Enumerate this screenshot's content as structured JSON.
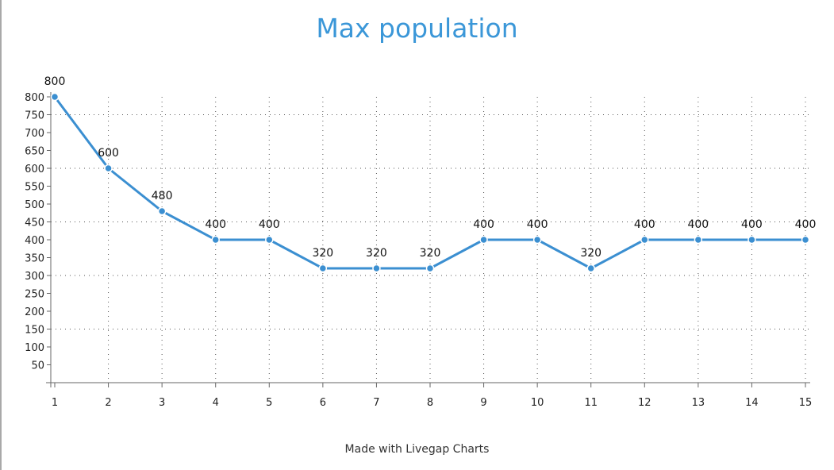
{
  "chart_data": {
    "type": "line",
    "title": "Max population",
    "x": [
      1,
      2,
      3,
      4,
      5,
      6,
      7,
      8,
      9,
      10,
      11,
      12,
      13,
      14,
      15
    ],
    "series": [
      {
        "values": [
          800,
          600,
          480,
          400,
          400,
          320,
          320,
          320,
          400,
          400,
          320,
          400,
          400,
          400,
          400
        ]
      }
    ],
    "xlabel": "",
    "ylabel": "",
    "ylim": [
      0,
      800
    ],
    "yticks": [
      50,
      100,
      150,
      200,
      250,
      300,
      350,
      400,
      450,
      500,
      550,
      600,
      650,
      700,
      750,
      800
    ],
    "grid": true,
    "data_labels": true,
    "line_color": "#3b8fd1",
    "grid_color": "#555555"
  },
  "footer": "Made with Livegap Charts"
}
